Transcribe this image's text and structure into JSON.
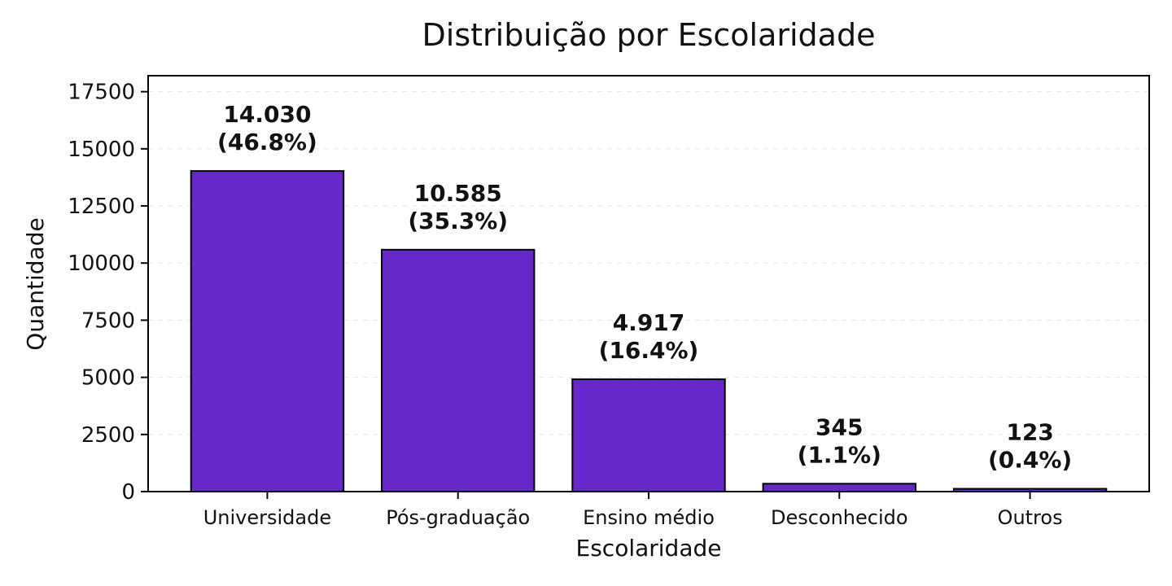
{
  "chart_data": {
    "type": "bar",
    "title": "Distribuição por Escolaridade",
    "xlabel": "Escolaridade",
    "ylabel": "Quantidade",
    "categories": [
      "Universidade",
      "Pós-graduação",
      "Ensino médio",
      "Desconhecido",
      "Outros"
    ],
    "values": [
      14030,
      10585,
      4917,
      345,
      123
    ],
    "value_labels": [
      "14.030",
      "10.585",
      "4.917",
      "345",
      "123"
    ],
    "percent_labels": [
      "(46.8%)",
      "(35.3%)",
      "(16.4%)",
      "(1.1%)",
      "(0.4%)"
    ],
    "yticks": [
      0,
      2500,
      5000,
      7500,
      10000,
      12500,
      15000,
      17500
    ],
    "ylim": [
      0,
      18200
    ],
    "grid": "horizontal, dashed, faint",
    "bar_color": "#6628c8",
    "bar_edge_color": "#000000"
  }
}
